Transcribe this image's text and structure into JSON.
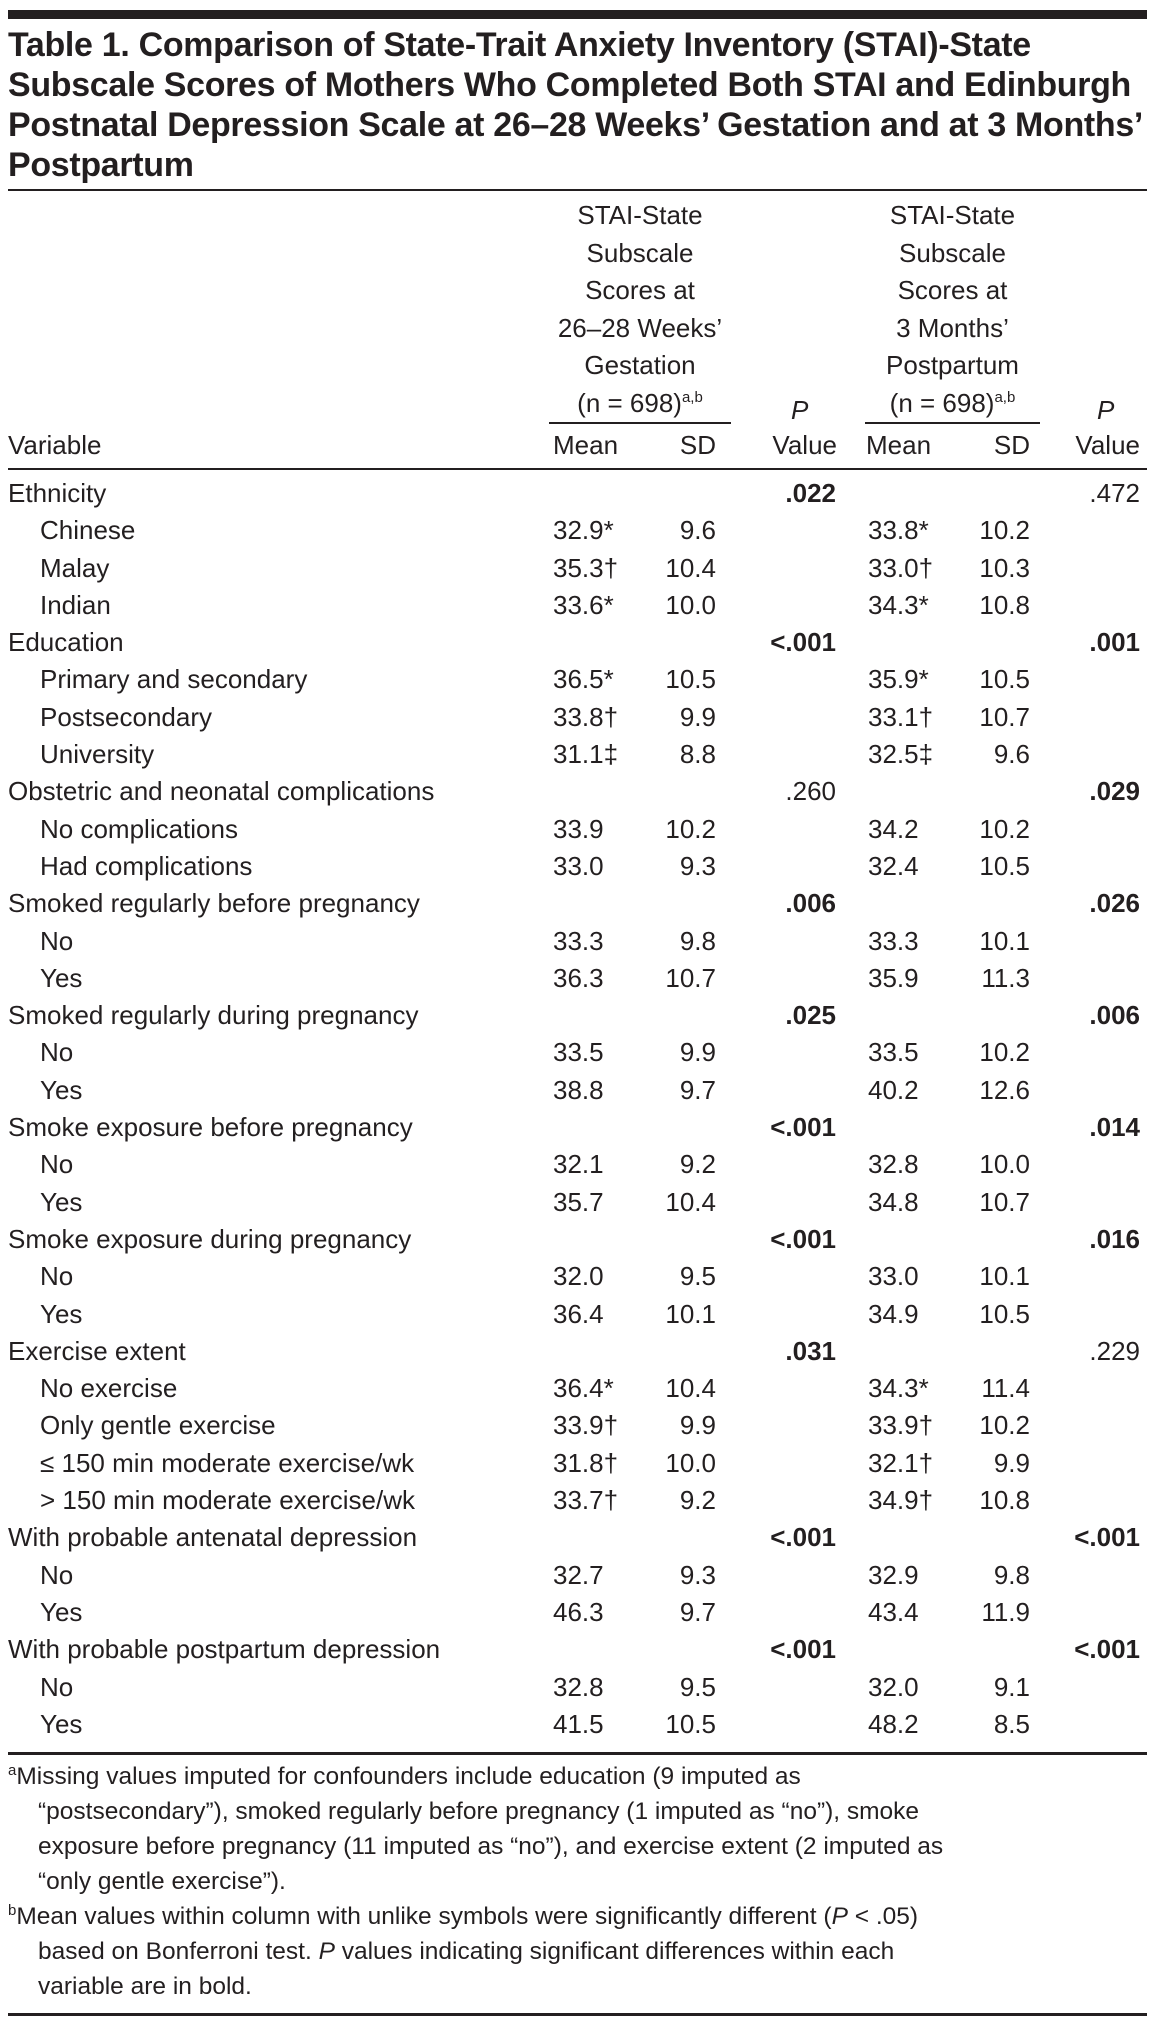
{
  "title_lines": [
    "Table 1. Comparison of State-Trait Anxiety Inventory (STAI)-State",
    "Subscale Scores of Mothers Who Completed Both STAI and Edinburgh",
    "Postnatal Depression Scale at 26–28 Weeks’ Gestation and at 3 Months’",
    "Postpartum"
  ],
  "header": {
    "variable": "Variable",
    "group1_lines": [
      "STAI-State",
      "Subscale",
      "Scores at",
      "26–28 Weeks’",
      "Gestation",
      "(n = 698)"
    ],
    "group1_sup": "a,b",
    "group2_lines": [
      "STAI-State",
      "Subscale",
      "Scores at",
      "3 Months’",
      "Postpartum",
      "(n = 698)"
    ],
    "group2_sup": "a,b",
    "mean": "Mean",
    "sd": "SD",
    "p": "P",
    "value": "Value"
  },
  "rows": [
    {
      "label": "Ethnicity",
      "type": "group",
      "p1": ".022",
      "p1_bold": true,
      "p2": ".472",
      "p2_bold": false
    },
    {
      "label": "Chinese",
      "type": "sub",
      "mean1": "32.9*",
      "sd1": "9.6",
      "mean2": "33.8*",
      "sd2": "10.2"
    },
    {
      "label": "Malay",
      "type": "sub",
      "mean1": "35.3†",
      "sd1": "10.4",
      "mean2": "33.0†",
      "sd2": "10.3"
    },
    {
      "label": "Indian",
      "type": "sub",
      "mean1": "33.6*",
      "sd1": "10.0",
      "mean2": "34.3*",
      "sd2": "10.8"
    },
    {
      "label": "Education",
      "type": "group",
      "p1": "<.001",
      "p1_bold": true,
      "p2": ".001",
      "p2_bold": true
    },
    {
      "label": "Primary and secondary",
      "type": "sub",
      "mean1": "36.5*",
      "sd1": "10.5",
      "mean2": "35.9*",
      "sd2": "10.5"
    },
    {
      "label": "Postsecondary",
      "type": "sub",
      "mean1": "33.8†",
      "sd1": "9.9",
      "mean2": "33.1†",
      "sd2": "10.7"
    },
    {
      "label": "University",
      "type": "sub",
      "mean1": "31.1‡",
      "sd1": "8.8",
      "mean2": "32.5‡",
      "sd2": "9.6"
    },
    {
      "label": "Obstetric and neonatal complications",
      "type": "group",
      "p1": ".260",
      "p1_bold": false,
      "p2": ".029",
      "p2_bold": true
    },
    {
      "label": "No complications",
      "type": "sub",
      "mean1": "33.9",
      "sd1": "10.2",
      "mean2": "34.2",
      "sd2": "10.2"
    },
    {
      "label": "Had complications",
      "type": "sub",
      "mean1": "33.0",
      "sd1": "9.3",
      "mean2": "32.4",
      "sd2": "10.5"
    },
    {
      "label": "Smoked regularly before pregnancy",
      "type": "group",
      "p1": ".006",
      "p1_bold": true,
      "p2": ".026",
      "p2_bold": true
    },
    {
      "label": "No",
      "type": "sub",
      "mean1": "33.3",
      "sd1": "9.8",
      "mean2": "33.3",
      "sd2": "10.1"
    },
    {
      "label": "Yes",
      "type": "sub",
      "mean1": "36.3",
      "sd1": "10.7",
      "mean2": "35.9",
      "sd2": "11.3"
    },
    {
      "label": "Smoked regularly during pregnancy",
      "type": "group",
      "p1": ".025",
      "p1_bold": true,
      "p2": ".006",
      "p2_bold": true
    },
    {
      "label": "No",
      "type": "sub",
      "mean1": "33.5",
      "sd1": "9.9",
      "mean2": "33.5",
      "sd2": "10.2"
    },
    {
      "label": "Yes",
      "type": "sub",
      "mean1": "38.8",
      "sd1": "9.7",
      "mean2": "40.2",
      "sd2": "12.6"
    },
    {
      "label": "Smoke exposure before pregnancy",
      "type": "group",
      "p1": "<.001",
      "p1_bold": true,
      "p2": ".014",
      "p2_bold": true
    },
    {
      "label": "No",
      "type": "sub",
      "mean1": "32.1",
      "sd1": "9.2",
      "mean2": "32.8",
      "sd2": "10.0"
    },
    {
      "label": "Yes",
      "type": "sub",
      "mean1": "35.7",
      "sd1": "10.4",
      "mean2": "34.8",
      "sd2": "10.7"
    },
    {
      "label": "Smoke exposure during pregnancy",
      "type": "group",
      "p1": "<.001",
      "p1_bold": true,
      "p2": ".016",
      "p2_bold": true
    },
    {
      "label": "No",
      "type": "sub",
      "mean1": "32.0",
      "sd1": "9.5",
      "mean2": "33.0",
      "sd2": "10.1"
    },
    {
      "label": "Yes",
      "type": "sub",
      "mean1": "36.4",
      "sd1": "10.1",
      "mean2": "34.9",
      "sd2": "10.5"
    },
    {
      "label": "Exercise extent",
      "type": "group",
      "p1": ".031",
      "p1_bold": true,
      "p2": ".229",
      "p2_bold": false
    },
    {
      "label": "No exercise",
      "type": "sub",
      "mean1": "36.4*",
      "sd1": "10.4",
      "mean2": "34.3*",
      "sd2": "11.4"
    },
    {
      "label": "Only gentle exercise",
      "type": "sub",
      "mean1": "33.9†",
      "sd1": "9.9",
      "mean2": "33.9†",
      "sd2": "10.2"
    },
    {
      "label": "≤ 150 min moderate exercise/wk",
      "type": "sub",
      "mean1": "31.8†",
      "sd1": "10.0",
      "mean2": "32.1†",
      "sd2": "9.9"
    },
    {
      "label": "> 150 min moderate exercise/wk",
      "type": "sub",
      "mean1": "33.7†",
      "sd1": "9.2",
      "mean2": "34.9†",
      "sd2": "10.8"
    },
    {
      "label": "With probable antenatal depression",
      "type": "group",
      "p1": "<.001",
      "p1_bold": true,
      "p2": "<.001",
      "p2_bold": true
    },
    {
      "label": "No",
      "type": "sub",
      "mean1": "32.7",
      "sd1": "9.3",
      "mean2": "32.9",
      "sd2": "9.8"
    },
    {
      "label": "Yes",
      "type": "sub",
      "mean1": "46.3",
      "sd1": "9.7",
      "mean2": "43.4",
      "sd2": "11.9"
    },
    {
      "label": "With probable postpartum depression",
      "type": "group",
      "p1": "<.001",
      "p1_bold": true,
      "p2": "<.001",
      "p2_bold": true
    },
    {
      "label": "No",
      "type": "sub",
      "mean1": "32.8",
      "sd1": "9.5",
      "mean2": "32.0",
      "sd2": "9.1"
    },
    {
      "label": "Yes",
      "type": "sub",
      "mean1": "41.5",
      "sd1": "10.5",
      "mean2": "48.2",
      "sd2": "8.5"
    }
  ],
  "footnotes": [
    {
      "marker": "a",
      "lines": [
        [
          {
            "text": "Missing values imputed for confounders include education (9 imputed as"
          }
        ],
        [
          {
            "text": "“postsecondary”), smoked regularly before pregnancy (1 imputed as “no”), smoke"
          }
        ],
        [
          {
            "text": "exposure before pregnancy (11 imputed as “no”), and exercise extent (2 imputed as"
          }
        ],
        [
          {
            "text": "“only gentle exercise”)."
          }
        ]
      ]
    },
    {
      "marker": "b",
      "lines": [
        [
          {
            "text": "Mean values within column with unlike symbols were significantly different ("
          },
          {
            "text": "P",
            "italic": true
          },
          {
            "text": " < .05)"
          }
        ],
        [
          {
            "text": "based on Bonferroni test. "
          },
          {
            "text": "P",
            "italic": true
          },
          {
            "text": " values indicating significant differences within each"
          }
        ],
        [
          {
            "text": "variable are in bold."
          }
        ]
      ]
    }
  ]
}
